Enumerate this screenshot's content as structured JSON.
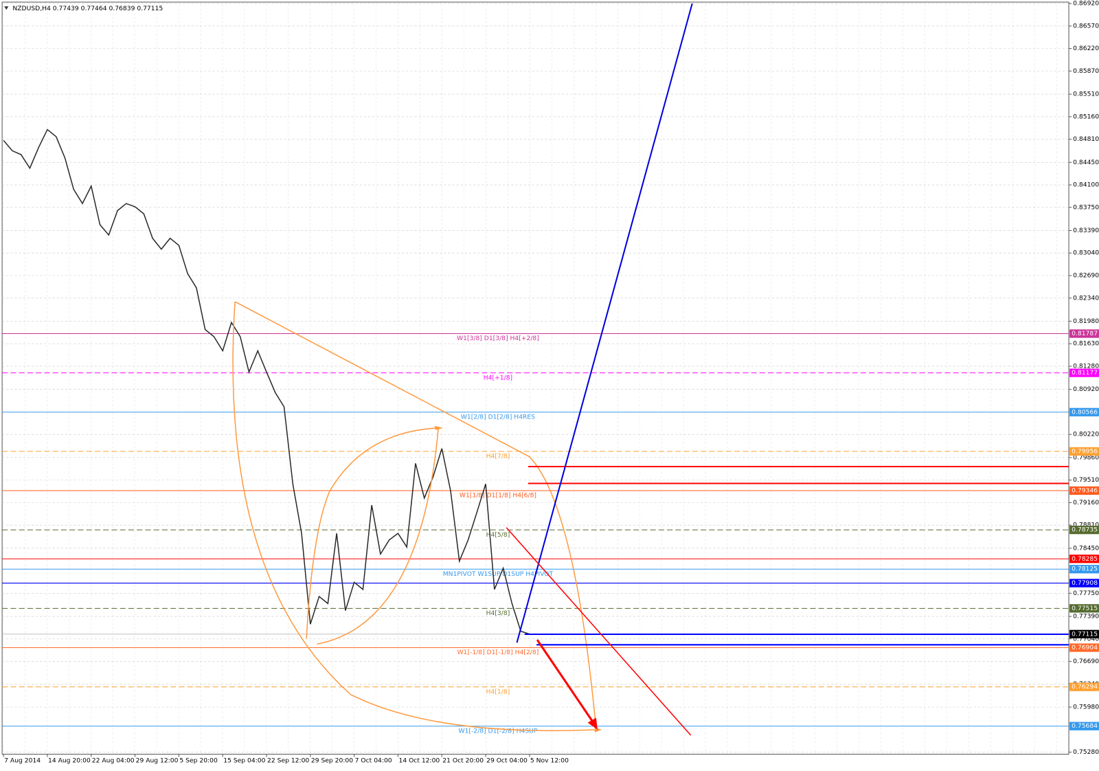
{
  "chart_data": {
    "type": "line",
    "title": "NZDUSD,H4 0.77439 0.77464 0.76839 0.77115",
    "values": [
      0.8479,
      0.8463,
      0.8457,
      0.8436,
      0.8468,
      0.8496,
      0.8485,
      0.8452,
      0.8403,
      0.8381,
      0.8408,
      0.8348,
      0.8332,
      0.837,
      0.8381,
      0.8376,
      0.8365,
      0.8327,
      0.831,
      0.8327,
      0.8316,
      0.8272,
      0.825,
      0.8185,
      0.8174,
      0.8152,
      0.8196,
      0.8174,
      0.8119,
      0.8152,
      0.8119,
      0.8087,
      0.8065,
      0.7945,
      0.7868,
      0.7727,
      0.777,
      0.7759,
      0.7868,
      0.7748,
      0.7792,
      0.7781,
      0.7912,
      0.7836,
      0.7858,
      0.7868,
      0.7847,
      0.7977,
      0.7923,
      0.7956,
      0.8,
      0.7934,
      0.7825,
      0.7858,
      0.7901,
      0.7945,
      0.7781,
      0.7814,
      0.7759,
      0.7716,
      0.77115
    ],
    "color": "#2a2a2a",
    "xticks": [
      {
        "value": 0,
        "label": "7 Aug 2014"
      },
      {
        "value": 5,
        "label": "14 Aug 20:00"
      },
      {
        "value": 10,
        "label": "22 Aug 04:00"
      },
      {
        "value": 15,
        "label": "29 Aug 12:00"
      },
      {
        "value": 20,
        "label": "5 Sep 20:00"
      },
      {
        "value": 25,
        "label": "15 Sep 04:00"
      },
      {
        "value": 30,
        "label": "22 Sep 12:00"
      },
      {
        "value": 35,
        "label": "29 Sep 20:00"
      },
      {
        "value": 40,
        "label": "7 Oct 04:00"
      },
      {
        "value": 45,
        "label": "14 Oct 12:00"
      },
      {
        "value": 50,
        "label": "21 Oct 20:00"
      },
      {
        "value": 55,
        "label": "29 Oct 04:00"
      },
      {
        "value": 60,
        "label": "5 Nov 12:00"
      }
    ],
    "ylim": [
      0.7525,
      0.8692
    ],
    "yticks": [
      {
        "value": 0.8692,
        "label": "0.86920"
      },
      {
        "value": 0.8657,
        "label": "0.86570"
      },
      {
        "value": 0.8622,
        "label": "0.86220"
      },
      {
        "value": 0.8587,
        "label": "0.85870"
      },
      {
        "value": 0.8551,
        "label": "0.85510"
      },
      {
        "value": 0.8516,
        "label": "0.85160"
      },
      {
        "value": 0.8481,
        "label": "0.84810"
      },
      {
        "value": 0.8445,
        "label": "0.84450"
      },
      {
        "value": 0.841,
        "label": "0.84100"
      },
      {
        "value": 0.8375,
        "label": "0.83750"
      },
      {
        "value": 0.8339,
        "label": "0.83390"
      },
      {
        "value": 0.8304,
        "label": "0.83040"
      },
      {
        "value": 0.8269,
        "label": "0.82690"
      },
      {
        "value": 0.8234,
        "label": "0.82340"
      },
      {
        "value": 0.8198,
        "label": "0.81980"
      },
      {
        "value": 0.8163,
        "label": "0.81630"
      },
      {
        "value": 0.8128,
        "label": "0.81280"
      },
      {
        "value": 0.8092,
        "label": "0.80920"
      },
      {
        "value": 0.8022,
        "label": "0.80220"
      },
      {
        "value": 0.7986,
        "label": "0.79860"
      },
      {
        "value": 0.7951,
        "label": "0.79510"
      },
      {
        "value": 0.7916,
        "label": "0.79160"
      },
      {
        "value": 0.7881,
        "label": "0.78810"
      },
      {
        "value": 0.7845,
        "label": "0.78450"
      },
      {
        "value": 0.7775,
        "label": "0.77750"
      },
      {
        "value": 0.7739,
        "label": "0.77390"
      },
      {
        "value": 0.7704,
        "label": "0.77040"
      },
      {
        "value": 0.7669,
        "label": "0.76690"
      },
      {
        "value": 0.7634,
        "label": "0.76340"
      },
      {
        "value": 0.7598,
        "label": "0.75980"
      },
      {
        "value": 0.7528,
        "label": "0.75280"
      }
    ],
    "grid": true,
    "levels": [
      {
        "value": 0.81787,
        "label": "0.81787",
        "text": "W1[3/8] D1[3/8] H4[+2/8]",
        "color": "#cc3399",
        "dashed": false
      },
      {
        "value": 0.81177,
        "label": "0.81177",
        "text": "H4[+1/8]",
        "color": "#ff00ff",
        "dashed": true
      },
      {
        "value": 0.80566,
        "label": "0.80566",
        "text": "W1[2/8] D1[2/8] H4RES",
        "color": "#3399ee",
        "dashed": false
      },
      {
        "value": 0.79956,
        "label": "0.79956",
        "text": "H4[7/8]",
        "color": "#ffa030",
        "dashed": true
      },
      {
        "value": 0.79346,
        "label": "0.79346",
        "text": "W1[1/8] D1[1/8] H4[6/8]",
        "color": "#ff5a1e",
        "dashed": false
      },
      {
        "value": 0.78735,
        "label": "0.78735",
        "text": "H4[5/8]",
        "color": "#556b2f",
        "dashed": true
      },
      {
        "value": 0.78285,
        "label": "0.78285",
        "color": "#ff0000",
        "dashed": false
      },
      {
        "value": 0.78125,
        "label": "0.78125",
        "text": "MN1PIVOT W1SUP D1SUP H4PIVOT",
        "color": "#3399ee",
        "dashed": false
      },
      {
        "value": 0.77908,
        "label": "0.77908",
        "color": "#0000ff",
        "dashed": false
      },
      {
        "value": 0.77515,
        "label": "0.77515",
        "text": "H4[3/8]",
        "color": "#556b2f",
        "dashed": true
      },
      {
        "value": 0.77115,
        "label": "0.77115",
        "color": "#000000",
        "dashed": false
      },
      {
        "value": 0.76904,
        "label": "0.76904",
        "text": "W1[-1/8] D1[-1/8] H4[2/8]",
        "color": "#ff6a2a",
        "dashed": false
      },
      {
        "value": 0.76294,
        "label": "0.76294",
        "text": "H4[1/8]",
        "color": "#ffa030",
        "dashed": true
      },
      {
        "value": 0.75684,
        "label": "0.75684",
        "text": "W1[-2/8] D1[-2/8] H4SUP",
        "color": "#3399ee",
        "dashed": false
      }
    ]
  }
}
